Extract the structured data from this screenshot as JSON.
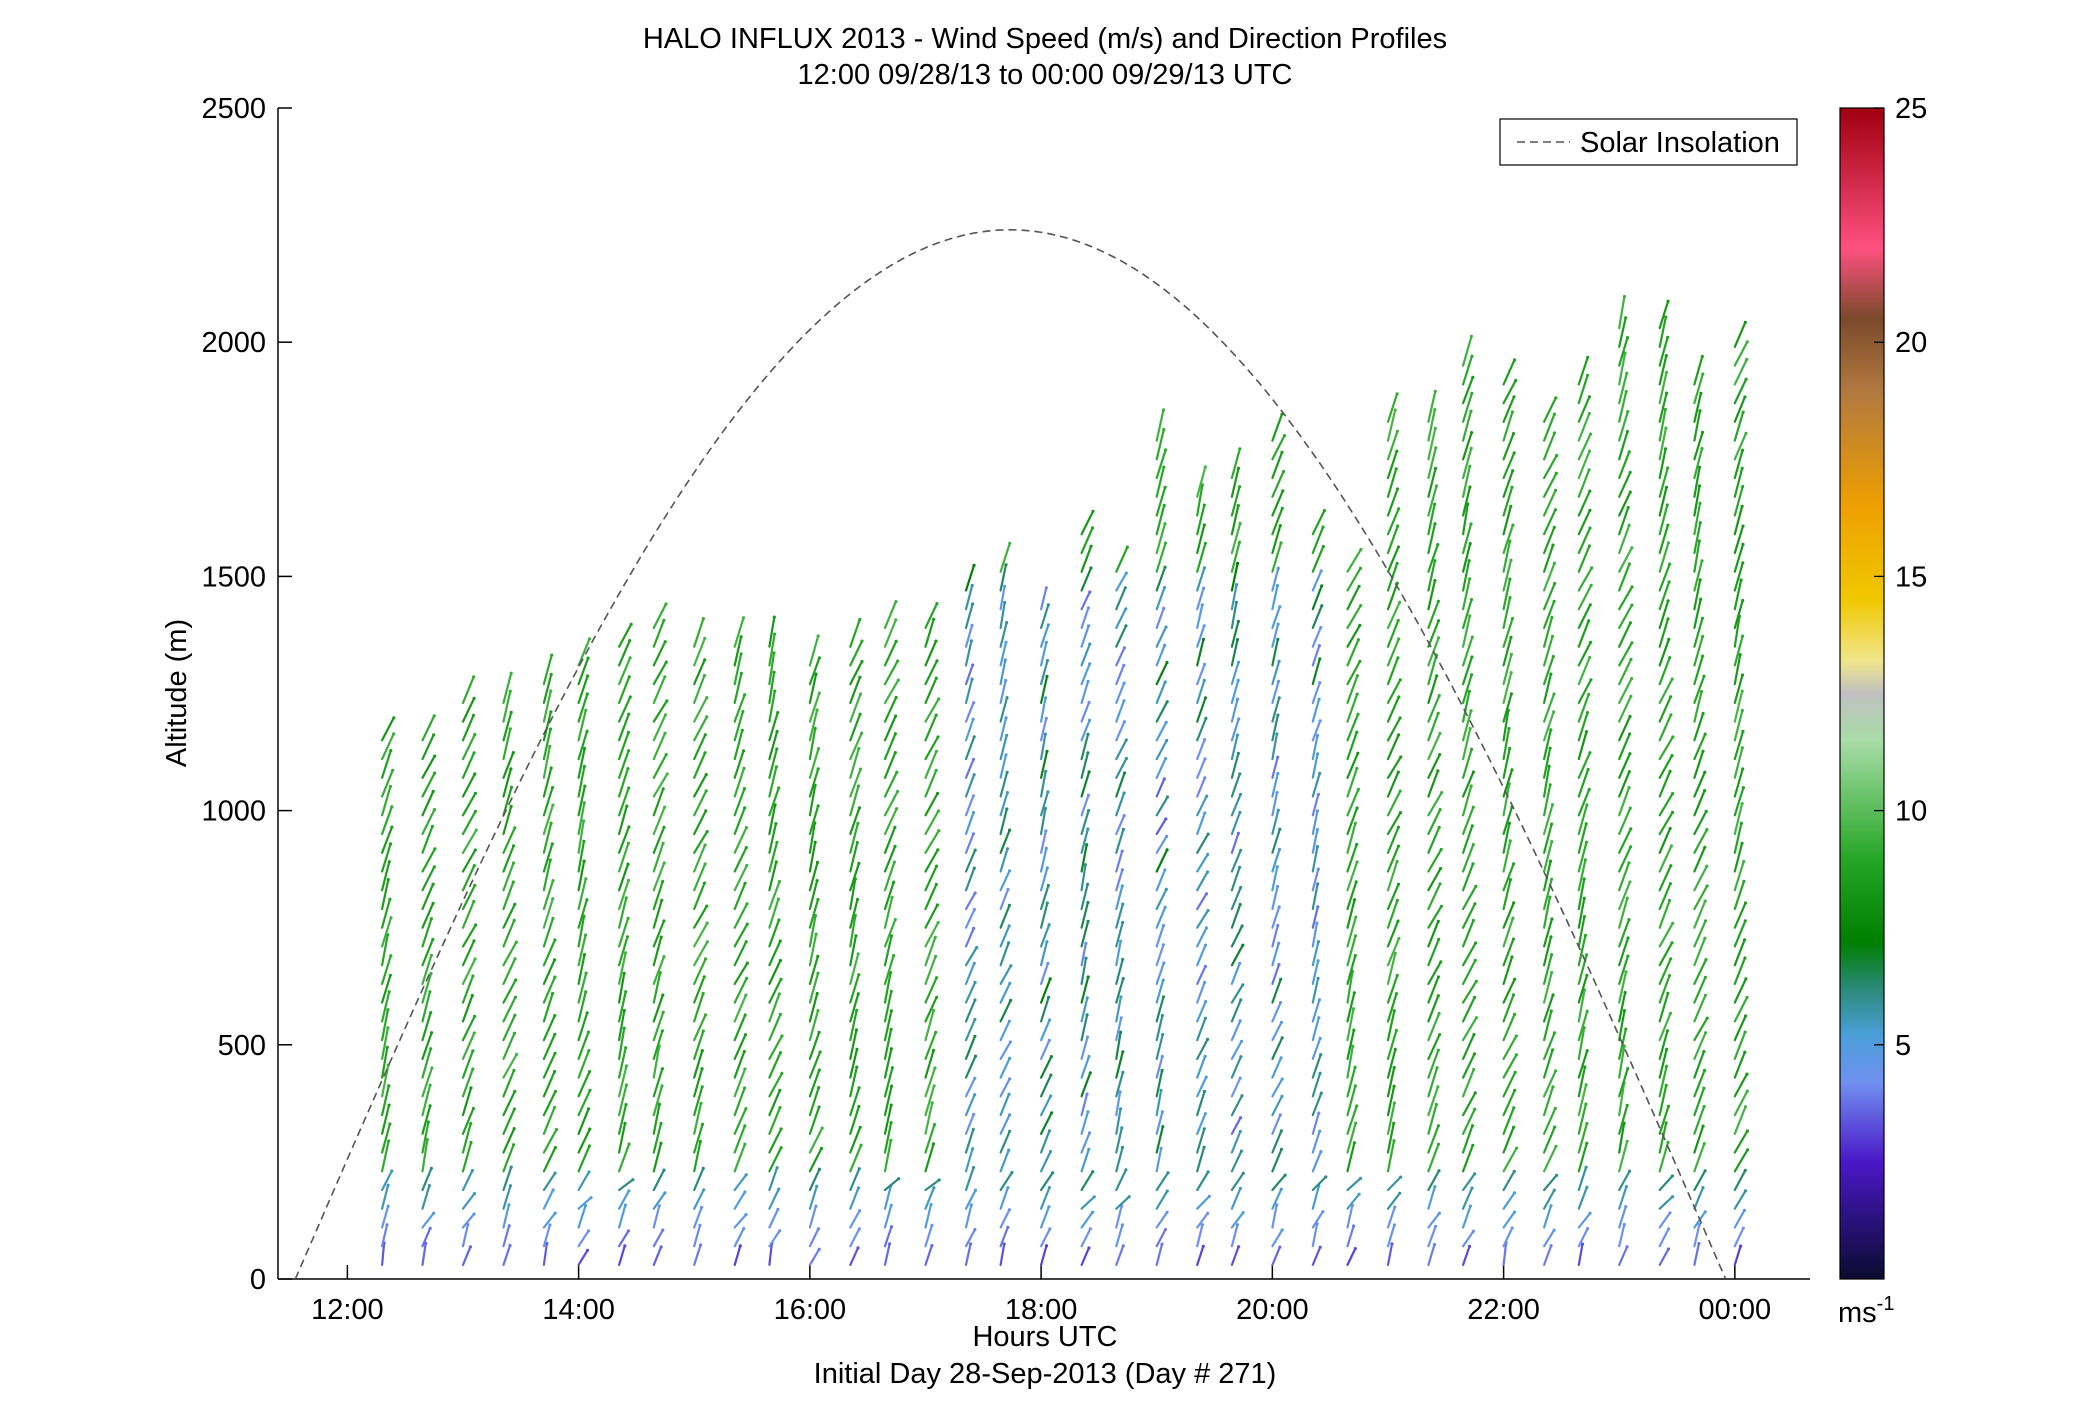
{
  "chart_data": {
    "type": "vector-profile",
    "title": "HALO INFLUX 2013 - Wind Speed (m/s) and Direction Profiles",
    "subtitle": "12:00 09/28/13 to 00:00 09/29/13  UTC",
    "xlabel": "Hours UTC",
    "xlabel_note": "Initial Day 28-Sep-2013 (Day # 271)",
    "ylabel": "Altitude (m)",
    "xlim": [
      11.4,
      24.65
    ],
    "ylim": [
      0,
      2500
    ],
    "x_ticks": [
      {
        "value": 12,
        "label": "12:00"
      },
      {
        "value": 14,
        "label": "14:00"
      },
      {
        "value": 16,
        "label": "16:00"
      },
      {
        "value": 18,
        "label": "18:00"
      },
      {
        "value": 20,
        "label": "20:00"
      },
      {
        "value": 22,
        "label": "22:00"
      },
      {
        "value": 24,
        "label": "00:00"
      }
    ],
    "y_ticks": [
      0,
      500,
      1000,
      1500,
      2000,
      2500
    ],
    "grid": false,
    "legend": {
      "position": "top-right",
      "entries": [
        "Solar Insolation"
      ]
    },
    "colorbar": {
      "range": [
        0,
        25
      ],
      "ticks": [
        5,
        10,
        15,
        20,
        25
      ],
      "unit": "ms",
      "unit_exponent": "-1",
      "stops": [
        {
          "v": 0,
          "color": "#0b0b30"
        },
        {
          "v": 2.5,
          "color": "#4a18c8"
        },
        {
          "v": 4.2,
          "color": "#7090f0"
        },
        {
          "v": 5.2,
          "color": "#4a9fd8"
        },
        {
          "v": 6.2,
          "color": "#2a8a78"
        },
        {
          "v": 7.2,
          "color": "#007f00"
        },
        {
          "v": 9,
          "color": "#27a727"
        },
        {
          "v": 11.5,
          "color": "#a8dca8"
        },
        {
          "v": 12.5,
          "color": "#c0c0c0"
        },
        {
          "v": 13.2,
          "color": "#f0e68c"
        },
        {
          "v": 14.5,
          "color": "#f0c800"
        },
        {
          "v": 16.5,
          "color": "#eea000"
        },
        {
          "v": 19,
          "color": "#b07840"
        },
        {
          "v": 20.5,
          "color": "#7a4a2a"
        },
        {
          "v": 22,
          "color": "#ff5080"
        },
        {
          "v": 25,
          "color": "#a00010"
        }
      ]
    },
    "solar_insolation": {
      "style": "dashed",
      "color": "#555555",
      "start_hour": 11.55,
      "end_hour": 23.92,
      "peak_hour": 17.73,
      "peak_altitude_equiv": 2240
    },
    "profiles": [
      {
        "t": 12.3,
        "top": 1170
      },
      {
        "t": 12.65,
        "top": 1165
      },
      {
        "t": 13.0,
        "top": 1250
      },
      {
        "t": 13.35,
        "top": 1250
      },
      {
        "t": 13.7,
        "top": 1300
      },
      {
        "t": 14.0,
        "top": 1340
      },
      {
        "t": 14.35,
        "top": 1375
      },
      {
        "t": 14.65,
        "top": 1405
      },
      {
        "t": 15.0,
        "top": 1385
      },
      {
        "t": 15.35,
        "top": 1375
      },
      {
        "t": 15.65,
        "top": 1370
      },
      {
        "t": 16.0,
        "top": 1335
      },
      {
        "t": 16.35,
        "top": 1365
      },
      {
        "t": 16.65,
        "top": 1405
      },
      {
        "t": 17.0,
        "top": 1405
      },
      {
        "t": 17.35,
        "top": 1505
      },
      {
        "t": 17.65,
        "top": 1540
      },
      {
        "t": 18.0,
        "top": 1445
      },
      {
        "t": 18.35,
        "top": 1625
      },
      {
        "t": 18.65,
        "top": 1525
      },
      {
        "t": 19.0,
        "top": 1790
      },
      {
        "t": 19.35,
        "top": 1705
      },
      {
        "t": 19.65,
        "top": 1715
      },
      {
        "t": 20.0,
        "top": 1790
      },
      {
        "t": 20.35,
        "top": 1625
      },
      {
        "t": 20.65,
        "top": 1510
      },
      {
        "t": 21.0,
        "top": 1835
      },
      {
        "t": 21.35,
        "top": 1845
      },
      {
        "t": 21.65,
        "top": 1965
      },
      {
        "t": 22.0,
        "top": 1920
      },
      {
        "t": 22.35,
        "top": 1855
      },
      {
        "t": 22.65,
        "top": 1915
      },
      {
        "t": 23.0,
        "top": 2035
      },
      {
        "t": 23.35,
        "top": 2040
      },
      {
        "t": 23.65,
        "top": 1920
      },
      {
        "t": 24.0,
        "top": 2005
      }
    ]
  }
}
